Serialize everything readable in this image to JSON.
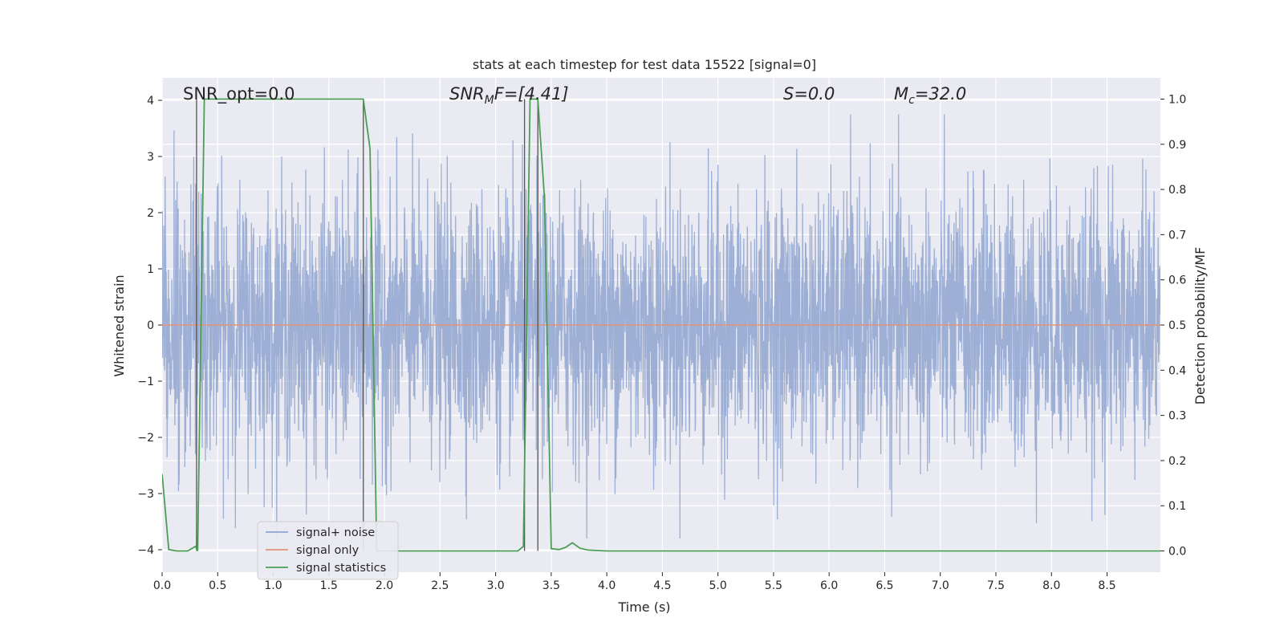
{
  "chart_data": {
    "type": "line",
    "title": "stats at each timestep for test data 15522 [signal=0]",
    "xlabel": "Time (s)",
    "ylabel": "Whitened strain",
    "y2label": "Detection probability/MF",
    "xlim": [
      0.0,
      8.98
    ],
    "ylim": [
      -4.4,
      4.4
    ],
    "y2lim": [
      -0.047,
      1.047
    ],
    "xticks": [
      "0.0",
      "0.5",
      "1.0",
      "1.5",
      "2.0",
      "2.5",
      "3.0",
      "3.5",
      "4.0",
      "4.5",
      "5.0",
      "5.5",
      "6.0",
      "6.5",
      "7.0",
      "7.5",
      "8.0",
      "8.5"
    ],
    "yticks": [
      "4",
      "3",
      "2",
      "1",
      "0",
      "−1",
      "−2",
      "−3",
      "−4"
    ],
    "y2ticks": [
      "1.0",
      "0.9",
      "0.8",
      "0.7",
      "0.6",
      "0.5",
      "0.4",
      "0.3",
      "0.2",
      "0.1",
      "0.0"
    ],
    "grid": true,
    "legend_position": "lower-left",
    "annotations": {
      "snr_opt": "SNR_opt=0.0",
      "snr_mf": "SNR",
      "snr_mf_sub": "M",
      "snr_mf_rest": "F=[4.41]",
      "s_stat": "S=0.0",
      "mc_prefix": "M",
      "mc_sub": "c",
      "mc_rest": "=32.0"
    },
    "series": [
      {
        "name": "signal+ noise",
        "color": "#8fa5cf",
        "description_values": "whitened noise, dense random values between about -3.8 and 3.8"
      },
      {
        "name": "signal only",
        "color": "#e1927a",
        "x": [
          0.0,
          8.98
        ],
        "y": [
          0.0,
          0.0
        ]
      },
      {
        "name": "signal statistics",
        "color": "#4c9e57",
        "axis": "right",
        "x": [
          0.0,
          0.06,
          0.13,
          0.23,
          0.3,
          0.32,
          0.38,
          1.0,
          1.5,
          1.81,
          1.87,
          1.93,
          2.0,
          2.5,
          3.0,
          3.2,
          3.25,
          3.31,
          3.38,
          3.44,
          3.5,
          3.57,
          3.63,
          3.69,
          3.76,
          3.83,
          3.92,
          4.0,
          5.0,
          6.0,
          7.0,
          8.0,
          8.98
        ],
        "y": [
          0.17,
          0.003,
          0.0,
          0.0,
          0.01,
          0.0,
          1.0,
          1.0,
          1.0,
          1.0,
          0.89,
          0.0,
          0.0,
          0.0,
          0.0,
          0.0,
          0.01,
          1.0,
          1.0,
          0.78,
          0.005,
          0.003,
          0.008,
          0.018,
          0.006,
          0.002,
          0.001,
          0.0,
          0.0,
          0.0,
          0.0,
          0.0,
          0.0
        ]
      }
    ],
    "markers": [
      0.31,
      1.81,
      3.26,
      3.38
    ],
    "colors": {
      "plot_bg": "#eaeaf2",
      "grid": "#ffffff",
      "marker_line": "#555555"
    }
  }
}
